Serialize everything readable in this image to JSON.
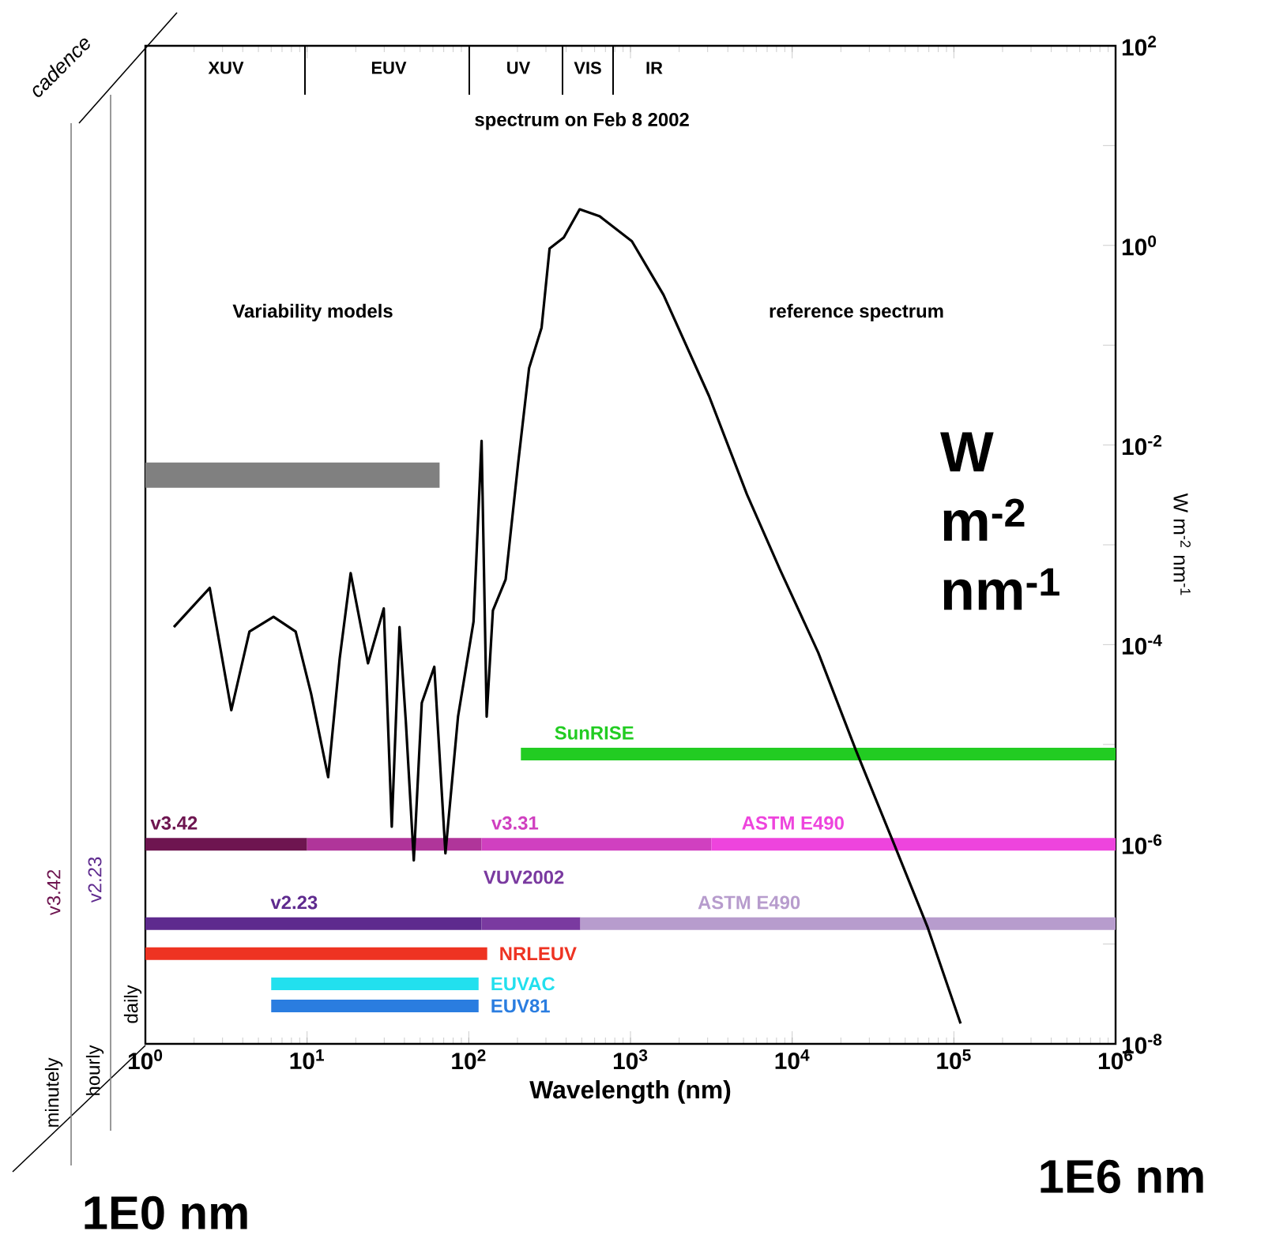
{
  "chart_data": {
    "type": "line",
    "title": "spectrum on Feb 8 2002",
    "xlabel": "Wavelength (nm)",
    "ylabel": "W m$^{-2}$ nm$^{-1}$",
    "log": "xy",
    "marker": "none",
    "line_style": "solid",
    "xlim": [
      1,
      1000000
    ],
    "ylim": [
      1e-08,
      100
    ],
    "xticks": [
      {
        "value": 1,
        "label": "10$^{0}$"
      },
      {
        "value": 10,
        "label": "10$^{1}$"
      },
      {
        "value": 100,
        "label": "10$^{2}$"
      },
      {
        "value": 1000,
        "label": "10$^{3}$"
      },
      {
        "value": 10000,
        "label": "10$^{4}$"
      },
      {
        "value": 100000,
        "label": "10$^{5}$"
      },
      {
        "value": 1000000,
        "label": "10$^{6}$"
      }
    ],
    "yticks": [
      {
        "value": 1e-08,
        "label": "10$^{-8}$"
      },
      {
        "value": 1e-07,
        "label": null
      },
      {
        "value": 1e-06,
        "label": "10$^{-6}$"
      },
      {
        "value": 1e-05,
        "label": null
      },
      {
        "value": 0.0001,
        "label": "10$^{-4}$"
      },
      {
        "value": 0.001,
        "label": null
      },
      {
        "value": 0.01,
        "label": "10$^{-2}$"
      },
      {
        "value": 0.1,
        "label": null
      },
      {
        "value": 1,
        "label": "10$^{0}$"
      },
      {
        "value": 10,
        "label": null
      },
      {
        "value": 100,
        "label": "10$^{2}$"
      }
    ],
    "series": [
      {
        "color": "#000000",
        "x": [
          1.5,
          2.5,
          3.4,
          4.4,
          6.2,
          8.5,
          10.6,
          13.5,
          15.9,
          18.6,
          23.8,
          29.8,
          33.4,
          37.3,
          40.8,
          45.7,
          51.2,
          61.2,
          71.7,
          85.8,
          107,
          120,
          129,
          141,
          169,
          202,
          236,
          282,
          316,
          387,
          485,
          647,
          1020,
          1600,
          3060,
          5250,
          8430,
          14500,
          24800,
          42700,
          68500,
          110000
        ],
        "values": [
          0.00015,
          0.00037,
          2.2e-05,
          0.000135,
          0.00019,
          0.000135,
          3.2e-05,
          4.7e-06,
          7.2e-05,
          0.00052,
          6.5e-05,
          0.00023,
          1.5e-06,
          0.00015,
          1.7e-05,
          6.9e-07,
          2.6e-05,
          6e-05,
          8.1e-07,
          1.9e-05,
          0.00017,
          0.011,
          1.9e-05,
          0.00022,
          0.00045,
          0.0066,
          0.059,
          0.15,
          0.93,
          1.2,
          2.3,
          1.95,
          1.1,
          0.32,
          0.031,
          0.0032,
          0.00056,
          8.3e-05,
          8.7e-06,
          1e-06,
          1.5e-07,
          1.6e-08
        ]
      },
      {
        "color": "#808080",
        "x": [
          1,
          66
        ],
        "values": [
          0.005,
          0.005
        ]
      },
      {
        "name": "SunRISE",
        "color": "#22cc22",
        "x": [
          210,
          1000000
        ],
        "values": [
          8e-06,
          8e-06
        ]
      },
      {
        "name": "v3.42",
        "color": "#6e1550",
        "x": [
          1,
          10
        ],
        "values": [
          1e-06,
          1e-06
        ]
      },
      {
        "color": "#b0359a",
        "x": [
          10,
          120
        ],
        "values": [
          1e-06,
          1e-06
        ]
      },
      {
        "name": "v3.31",
        "color": "#d040c0",
        "x": [
          120,
          3160
        ],
        "values": [
          1e-06,
          1e-06
        ]
      },
      {
        "name": "ASTM E490",
        "color": "#ee44dd",
        "x": [
          3160,
          1000000
        ],
        "values": [
          1e-06,
          1e-06
        ]
      },
      {
        "name": "v2.23",
        "color": "#5e2a8e",
        "x": [
          1,
          120
        ],
        "values": [
          1.6e-07,
          1.6e-07
        ]
      },
      {
        "name": "VUV2002",
        "color": "#7a3aa0",
        "x": [
          120,
          490
        ],
        "values": [
          1.6e-07,
          1.6e-07
        ]
      },
      {
        "name": "ASTM E490",
        "color": "#b79ccd",
        "x": [
          490,
          1000000
        ],
        "values": [
          1.6e-07,
          1.6e-07
        ]
      },
      {
        "name": "NRLEUV",
        "color": "#ee3322",
        "x": [
          1,
          130
        ],
        "values": [
          8e-08,
          8e-08
        ]
      },
      {
        "name": "EUVAC",
        "color": "#22e0ee",
        "x": [
          6,
          115
        ],
        "values": [
          4e-08,
          4e-08
        ]
      },
      {
        "name": "EUV81",
        "color": "#2a7de0",
        "x": [
          6,
          115
        ],
        "values": [
          2.4e-08,
          2.4e-08
        ]
      }
    ],
    "annotations": [
      "XUV",
      "EUV",
      "UV",
      "VIS",
      "IR",
      "Variability models",
      "reference spectrum",
      "W m$^{-2}$ nm$^{-1}$",
      "1E0 nm",
      "1E6 nm",
      "cadence",
      "minutely",
      "hourly",
      "daily",
      "v3.42",
      "v2.23"
    ]
  }
}
